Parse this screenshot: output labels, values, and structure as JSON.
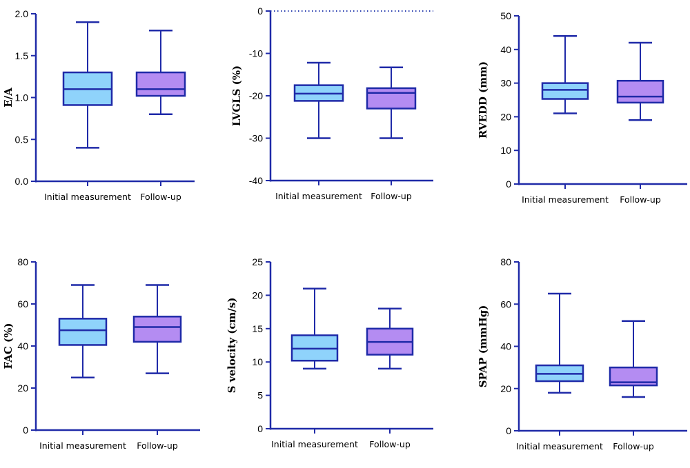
{
  "colors": {
    "axis": "#1f2aa8",
    "initial_fill": "#8fd3fb",
    "followup_fill": "#b48cf2",
    "box_line": "#1f2aa8",
    "zero_line": "#2a3fb0"
  },
  "chart_data": [
    {
      "type": "box",
      "ylabel": "E/A",
      "ylim": [
        0,
        2
      ],
      "yticks": [
        0,
        0.5,
        1,
        1.5,
        2
      ],
      "ytick_labels": [
        "0.0",
        "0.5",
        "1.0",
        "1.5",
        "2.0"
      ],
      "categories": [
        "Initial measurement",
        "Follow-up"
      ],
      "boxes": [
        {
          "min": 0.4,
          "q1": 0.91,
          "median": 1.1,
          "q3": 1.3,
          "max": 1.9
        },
        {
          "min": 0.8,
          "q1": 1.02,
          "median": 1.1,
          "q3": 1.3,
          "max": 1.8
        }
      ]
    },
    {
      "type": "box",
      "ylabel": "LVGLS (%)",
      "ylim": [
        -40,
        0
      ],
      "yticks": [
        -40,
        -30,
        -20,
        -10,
        0
      ],
      "ytick_labels": [
        "-40",
        "-30",
        "-20",
        "-10",
        "0"
      ],
      "zero_reference_line": true,
      "categories": [
        "Initial measurement",
        "Follow-up"
      ],
      "boxes": [
        {
          "min": -30,
          "q1": -21.2,
          "median": -19.5,
          "q3": -17.5,
          "max": -12.2
        },
        {
          "min": -30,
          "q1": -23,
          "median": -19.3,
          "q3": -18.2,
          "max": -13.3
        }
      ]
    },
    {
      "type": "box",
      "ylabel": "RVEDD (mm)",
      "ylim": [
        0,
        50
      ],
      "yticks": [
        0,
        10,
        20,
        30,
        40,
        50
      ],
      "ytick_labels": [
        "0",
        "10",
        "20",
        "30",
        "40",
        "50"
      ],
      "categories": [
        "Initial measurement",
        "Follow-up"
      ],
      "boxes": [
        {
          "min": 21,
          "q1": 25.3,
          "median": 28,
          "q3": 30,
          "max": 44
        },
        {
          "min": 19,
          "q1": 24.2,
          "median": 26,
          "q3": 30.7,
          "max": 42
        }
      ]
    },
    {
      "type": "box",
      "ylabel": "FAC (%)",
      "ylim": [
        0,
        80
      ],
      "yticks": [
        0,
        20,
        40,
        60,
        80
      ],
      "ytick_labels": [
        "0",
        "20",
        "40",
        "60",
        "80"
      ],
      "categories": [
        "Initial measurement",
        "Follow-up"
      ],
      "boxes": [
        {
          "min": 25,
          "q1": 40.5,
          "median": 47.5,
          "q3": 53,
          "max": 69
        },
        {
          "min": 27,
          "q1": 42,
          "median": 49,
          "q3": 54,
          "max": 69
        }
      ]
    },
    {
      "type": "box",
      "ylabel": "S velocity (cm/s)",
      "ylim": [
        0,
        25
      ],
      "yticks": [
        0,
        5,
        10,
        15,
        20,
        25
      ],
      "ytick_labels": [
        "0",
        "5",
        "10",
        "15",
        "20",
        "25"
      ],
      "categories": [
        "Initial measurement",
        "Follow-up"
      ],
      "boxes": [
        {
          "min": 9,
          "q1": 10.2,
          "median": 12,
          "q3": 14,
          "max": 21
        },
        {
          "min": 9,
          "q1": 11.1,
          "median": 13,
          "q3": 15,
          "max": 18
        }
      ]
    },
    {
      "type": "box",
      "ylabel": "SPAP (mmHg)",
      "ylim": [
        0,
        80
      ],
      "yticks": [
        0,
        20,
        40,
        60,
        80
      ],
      "ytick_labels": [
        "0",
        "20",
        "40",
        "60",
        "80"
      ],
      "categories": [
        "Initial measurement",
        "Follow-up"
      ],
      "boxes": [
        {
          "min": 18,
          "q1": 23.5,
          "median": 27,
          "q3": 31,
          "max": 65
        },
        {
          "min": 16,
          "q1": 21.5,
          "median": 23,
          "q3": 30,
          "max": 52
        }
      ]
    }
  ]
}
